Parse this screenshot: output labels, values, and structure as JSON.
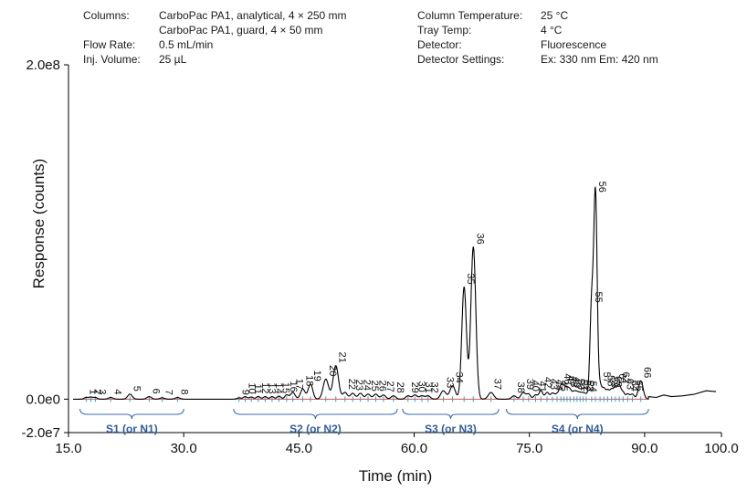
{
  "conditions": {
    "left": [
      {
        "label": "Columns:",
        "value": "CarboPac PA1, analytical, 4 × 250 mm"
      },
      {
        "label": "",
        "value": "CarboPac PA1, guard, 4 × 50 mm"
      },
      {
        "label": "Flow Rate:",
        "value": "0.5 mL/min"
      },
      {
        "label": "Inj. Volume:",
        "value": "25 µL"
      }
    ],
    "right": [
      {
        "label": "Column Temperature:",
        "value": "25 °C"
      },
      {
        "label": "Tray Temp:",
        "value": "4 °C"
      },
      {
        "label": "Detector:",
        "value": "Fluorescence"
      },
      {
        "label": "Detector Settings:",
        "value": "Ex: 330 nm Em: 420 nm"
      }
    ]
  },
  "chart_data": {
    "type": "line",
    "xlabel": "Time (min)",
    "ylabel": "Response (counts)",
    "xlim": [
      15.0,
      100.0
    ],
    "ylim": [
      -20000000,
      200000000
    ],
    "x_ticks": [
      15.0,
      30.0,
      45.0,
      60.0,
      75.0,
      90.0,
      100.0
    ],
    "x_tick_labels": [
      "15.0",
      "30.0",
      "45.0",
      "60.0",
      "75.0",
      "90.0",
      "100.0"
    ],
    "y_ticks": [
      -20000000,
      0,
      200000000
    ],
    "y_tick_labels": [
      "-2.0e7",
      "0.0e0",
      "2.0e8"
    ],
    "grid": false,
    "colors": {
      "trace": "#000000",
      "baseline": "#d9534f",
      "marker": "#29a8d8",
      "brace": "#3d6db5",
      "region_text": "#2f5c9e"
    },
    "peaks": [
      {
        "label": "1",
        "t": 17.3,
        "h": 1000000,
        "w": 0.25
      },
      {
        "label": "2",
        "t": 17.9,
        "h": 1200000,
        "w": 0.25
      },
      {
        "label": "3",
        "t": 18.5,
        "h": 1000000,
        "w": 0.25
      },
      {
        "label": "4",
        "t": 20.5,
        "h": 1000000,
        "w": 0.3
      },
      {
        "label": "5",
        "t": 23.0,
        "h": 3000000,
        "w": 0.3
      },
      {
        "label": "6",
        "t": 25.5,
        "h": 1500000,
        "w": 0.3
      },
      {
        "label": "7",
        "t": 27.2,
        "h": 800000,
        "w": 0.3
      },
      {
        "label": "8",
        "t": 29.2,
        "h": 1000000,
        "w": 0.3
      },
      {
        "label": "9",
        "t": 37.2,
        "h": 800000,
        "w": 0.25
      },
      {
        "label": "10",
        "t": 38.0,
        "h": 1500000,
        "w": 0.25
      },
      {
        "label": "11",
        "t": 38.8,
        "h": 1300000,
        "w": 0.25
      },
      {
        "label": "12",
        "t": 39.7,
        "h": 1600000,
        "w": 0.25
      },
      {
        "label": "13",
        "t": 40.6,
        "h": 1500000,
        "w": 0.25
      },
      {
        "label": "14",
        "t": 41.5,
        "h": 1500000,
        "w": 0.25
      },
      {
        "label": "15",
        "t": 42.4,
        "h": 1800000,
        "w": 0.25
      },
      {
        "label": "16",
        "t": 43.4,
        "h": 2500000,
        "w": 0.25
      },
      {
        "label": "17",
        "t": 44.2,
        "h": 4000000,
        "w": 0.3
      },
      {
        "label": "18",
        "t": 45.5,
        "h": 6000000,
        "w": 0.3
      },
      {
        "label": "19",
        "t": 46.5,
        "h": 9000000,
        "w": 0.3
      },
      {
        "label": "20",
        "t": 48.5,
        "h": 12000000,
        "w": 0.35
      },
      {
        "label": "21",
        "t": 49.8,
        "h": 20000000,
        "w": 0.35
      },
      {
        "label": "22",
        "t": 51.0,
        "h": 4000000,
        "w": 0.3
      },
      {
        "label": "23",
        "t": 52.0,
        "h": 3500000,
        "w": 0.3
      },
      {
        "label": "24",
        "t": 53.0,
        "h": 3500000,
        "w": 0.3
      },
      {
        "label": "25",
        "t": 54.0,
        "h": 3000000,
        "w": 0.3
      },
      {
        "label": "26",
        "t": 55.0,
        "h": 3000000,
        "w": 0.3
      },
      {
        "label": "27",
        "t": 56.0,
        "h": 2500000,
        "w": 0.3
      },
      {
        "label": "28",
        "t": 57.3,
        "h": 2000000,
        "w": 0.3
      },
      {
        "label": "29",
        "t": 59.2,
        "h": 2000000,
        "w": 0.3
      },
      {
        "label": "30",
        "t": 60.1,
        "h": 2500000,
        "w": 0.3
      },
      {
        "label": "31",
        "t": 61.0,
        "h": 2000000,
        "w": 0.3
      },
      {
        "label": "32",
        "t": 61.8,
        "h": 2000000,
        "w": 0.3
      },
      {
        "label": "33",
        "t": 63.8,
        "h": 5000000,
        "w": 0.35
      },
      {
        "label": "34",
        "t": 65.0,
        "h": 8000000,
        "w": 0.35
      },
      {
        "label": "35",
        "t": 66.5,
        "h": 67000000,
        "w": 0.3
      },
      {
        "label": "36",
        "t": 67.7,
        "h": 91000000,
        "w": 0.32
      },
      {
        "label": "37",
        "t": 70.0,
        "h": 4000000,
        "w": 0.35
      },
      {
        "label": "38",
        "t": 73.0,
        "h": 2000000,
        "w": 0.3
      },
      {
        "label": "39",
        "t": 74.2,
        "h": 4000000,
        "w": 0.3
      },
      {
        "label": "40",
        "t": 74.9,
        "h": 3000000,
        "w": 0.25
      },
      {
        "label": "41",
        "t": 75.8,
        "h": 2500000,
        "w": 0.25
      },
      {
        "label": "42",
        "t": 76.5,
        "h": 5000000,
        "w": 0.25
      },
      {
        "label": "43",
        "t": 77.3,
        "h": 4000000,
        "w": 0.25
      },
      {
        "label": "44",
        "t": 78.0,
        "h": 3500000,
        "w": 0.25
      },
      {
        "label": "45",
        "t": 78.6,
        "h": 3000000,
        "w": 0.25
      },
      {
        "label": "46",
        "t": 79.1,
        "h": 7000000,
        "w": 0.22
      },
      {
        "label": "47",
        "t": 79.5,
        "h": 6000000,
        "w": 0.22
      },
      {
        "label": "48",
        "t": 79.9,
        "h": 5500000,
        "w": 0.22
      },
      {
        "label": "49",
        "t": 80.3,
        "h": 5000000,
        "w": 0.22
      },
      {
        "label": "50",
        "t": 80.8,
        "h": 4000000,
        "w": 0.22
      },
      {
        "label": "51",
        "t": 81.2,
        "h": 3500000,
        "w": 0.22
      },
      {
        "label": "52",
        "t": 81.6,
        "h": 3000000,
        "w": 0.22
      },
      {
        "label": "53",
        "t": 82.0,
        "h": 3000000,
        "w": 0.22
      },
      {
        "label": "54",
        "t": 82.4,
        "h": 2500000,
        "w": 0.22
      },
      {
        "label": "55",
        "t": 83.1,
        "h": 56000000,
        "w": 0.22
      },
      {
        "label": "56",
        "t": 83.6,
        "h": 122000000,
        "w": 0.22
      },
      {
        "label": "57",
        "t": 84.2,
        "h": 8000000,
        "w": 0.22
      },
      {
        "label": "58",
        "t": 84.7,
        "h": 6000000,
        "w": 0.22
      },
      {
        "label": "59",
        "t": 85.2,
        "h": 5000000,
        "w": 0.22
      },
      {
        "label": "60",
        "t": 85.7,
        "h": 5500000,
        "w": 0.22
      },
      {
        "label": "61",
        "t": 86.2,
        "h": 7000000,
        "w": 0.22
      },
      {
        "label": "62",
        "t": 86.7,
        "h": 8000000,
        "w": 0.22
      },
      {
        "label": "63",
        "t": 87.2,
        "h": 4000000,
        "w": 0.22
      },
      {
        "label": "64",
        "t": 87.8,
        "h": 3000000,
        "w": 0.22
      },
      {
        "label": "65",
        "t": 88.4,
        "h": 3000000,
        "w": 0.25
      },
      {
        "label": "66",
        "t": 89.5,
        "h": 11000000,
        "w": 0.3
      }
    ],
    "tail": {
      "x": [
        90.5,
        91.5,
        92.5,
        93.5,
        95.0,
        96.5,
        98.0,
        99.3
      ],
      "y": [
        1500000,
        1000000,
        2500000,
        1500000,
        2000000,
        3000000,
        5000000,
        4500000
      ]
    },
    "regions": [
      {
        "label": "S1 (or N1)",
        "start": 16.5,
        "end": 30.0
      },
      {
        "label": "S2 (or N2)",
        "start": 36.5,
        "end": 57.8
      },
      {
        "label": "S3 (or N3)",
        "start": 58.5,
        "end": 71.0
      },
      {
        "label": "S4 (or N4)",
        "start": 72.0,
        "end": 90.5
      }
    ]
  }
}
